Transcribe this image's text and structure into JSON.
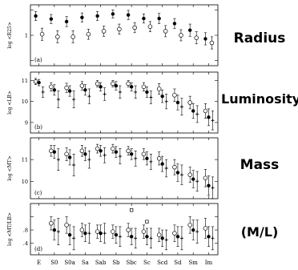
{
  "chart_data": [
    {
      "type": "scatter",
      "panel_tag": "(a)",
      "title": "Radius",
      "ylabel": "log <R25>",
      "ylim": [
        0.4,
        1.6
      ],
      "yticks": [
        0.5,
        1.0,
        1.5
      ],
      "ytick_labels": [
        "",
        "1",
        ""
      ],
      "categories": [
        "E",
        "S0",
        "S0a",
        "Sa",
        "Sab",
        "Sb",
        "Sbc",
        "Sc",
        "Scd",
        "Sd",
        "Sm",
        "Im"
      ],
      "series": [
        {
          "marker": "filled-circle",
          "x": [
            0,
            1,
            2,
            3,
            4,
            5,
            6,
            7,
            8,
            9,
            10,
            11
          ],
          "values": [
            1.38,
            1.32,
            1.27,
            1.35,
            1.38,
            1.42,
            1.4,
            1.33,
            1.33,
            1.23,
            1.1,
            0.93
          ],
          "err": [
            0.09,
            0.09,
            0.1,
            0.09,
            0.09,
            0.08,
            0.09,
            0.09,
            0.1,
            0.1,
            0.12,
            0.12
          ]
        },
        {
          "marker": "open-circle",
          "x": [
            0,
            1,
            2,
            3,
            4,
            5,
            6,
            7,
            8,
            9,
            10,
            11
          ],
          "values": [
            1.02,
            0.97,
            0.97,
            1.02,
            1.08,
            1.12,
            1.15,
            1.17,
            1.08,
            1.0,
            0.95,
            0.85
          ],
          "err": [
            0.12,
            0.12,
            0.12,
            0.1,
            0.1,
            0.1,
            0.1,
            0.1,
            0.11,
            0.11,
            0.12,
            0.12
          ]
        }
      ]
    },
    {
      "type": "scatter",
      "panel_tag": "(b)",
      "title": "Luminosity",
      "ylabel": "log <LB>",
      "ylim": [
        8.5,
        11.4
      ],
      "yticks": [
        9,
        10,
        11
      ],
      "ytick_labels": [
        "9",
        "10",
        "11"
      ],
      "categories": [
        "E",
        "S0",
        "S0a",
        "Sa",
        "Sab",
        "Sb",
        "Sbc",
        "Sc",
        "Scd",
        "Sd",
        "Sm",
        "Im"
      ],
      "series": [
        {
          "marker": "open-circle",
          "x": [
            0,
            1,
            2,
            3,
            4,
            5,
            6,
            7,
            8,
            9,
            10,
            11
          ],
          "values": [
            10.95,
            10.7,
            10.65,
            10.75,
            10.85,
            10.85,
            10.85,
            10.7,
            10.6,
            10.3,
            9.95,
            9.55
          ],
          "err": [
            0.15,
            0.2,
            0.22,
            0.2,
            0.15,
            0.15,
            0.15,
            0.2,
            0.25,
            0.3,
            0.3,
            0.35
          ]
        },
        {
          "marker": "filled-circle",
          "x": [
            0,
            1,
            2,
            3,
            4,
            5,
            6,
            7,
            8,
            9,
            10,
            11
          ],
          "values": [
            10.9,
            10.55,
            10.5,
            10.55,
            10.7,
            10.75,
            10.7,
            10.45,
            10.25,
            9.95,
            9.55,
            9.25
          ],
          "err": [
            0.15,
            0.25,
            0.25,
            0.25,
            0.2,
            0.2,
            0.2,
            0.25,
            0.3,
            0.35,
            0.35,
            0.4
          ]
        },
        {
          "marker": "cross",
          "x": [
            0,
            1,
            2,
            3,
            4,
            5,
            6,
            7,
            8,
            9,
            10,
            11
          ],
          "values": [
            10.45,
            10.1,
            10.1,
            10.25,
            10.35,
            10.45,
            10.45,
            10.2,
            10.0,
            9.75,
            9.4,
            9.1
          ],
          "err": [
            0.25,
            0.4,
            0.4,
            0.35,
            0.3,
            0.3,
            0.3,
            0.3,
            0.35,
            0.4,
            0.4,
            0.45
          ]
        }
      ]
    },
    {
      "type": "scatter",
      "panel_tag": "(c)",
      "title": "Mass",
      "ylabel": "log <MT>",
      "ylim": [
        9.2,
        12.0
      ],
      "yticks": [
        10,
        11
      ],
      "ytick_labels": [
        "10",
        "11"
      ],
      "categories": [
        "E",
        "S0",
        "S0a",
        "Sa",
        "Sab",
        "Sb",
        "Sbc",
        "Sc",
        "Scd",
        "Sd",
        "Sm",
        "Im"
      ],
      "series": [
        {
          "marker": "open-circle",
          "x": [
            1,
            2,
            3,
            4,
            5,
            6,
            7,
            8,
            9,
            10,
            11
          ],
          "values": [
            11.4,
            11.25,
            11.4,
            11.5,
            11.5,
            11.4,
            11.25,
            11.05,
            10.65,
            10.3,
            10.15
          ],
          "err": [
            0.25,
            0.3,
            0.25,
            0.2,
            0.2,
            0.2,
            0.25,
            0.3,
            0.35,
            0.35,
            0.4
          ]
        },
        {
          "marker": "filled-circle",
          "x": [
            1,
            2,
            3,
            4,
            5,
            6,
            7,
            8,
            9,
            10,
            11
          ],
          "values": [
            11.35,
            11.1,
            11.25,
            11.4,
            11.35,
            11.25,
            11.05,
            10.8,
            10.4,
            10.1,
            9.8
          ],
          "err": [
            0.3,
            0.35,
            0.3,
            0.25,
            0.25,
            0.25,
            0.3,
            0.35,
            0.4,
            0.4,
            0.45
          ]
        },
        {
          "marker": "cross",
          "x": [
            1,
            2,
            3,
            4,
            5,
            6,
            7,
            8,
            9,
            10,
            11
          ],
          "values": [
            11.0,
            10.75,
            11.0,
            11.2,
            11.15,
            11.05,
            10.9,
            10.6,
            10.3,
            10.0,
            9.7
          ],
          "err": [
            0.5,
            0.5,
            0.4,
            0.35,
            0.35,
            0.35,
            0.35,
            0.4,
            0.45,
            0.45,
            0.5
          ]
        }
      ]
    },
    {
      "type": "scatter",
      "panel_tag": "(d)",
      "title": "(M/L)",
      "ylabel": "log <MT/LB>",
      "ylim": [
        0.05,
        1.6
      ],
      "yticks": [
        0.4,
        0.8,
        1.2
      ],
      "ytick_labels": [
        ".4",
        ".8",
        ""
      ],
      "categories": [
        "E",
        "S0",
        "S0a",
        "Sa",
        "Sab",
        "Sb",
        "Sbc",
        "Sc",
        "Scd",
        "Sd",
        "Sm",
        "Im"
      ],
      "series": [
        {
          "marker": "open-circle",
          "x": [
            1,
            2,
            3,
            4,
            5,
            6,
            7,
            8,
            9,
            10,
            11
          ],
          "values": [
            1.0,
            0.95,
            0.8,
            0.75,
            0.75,
            0.8,
            0.75,
            0.65,
            0.7,
            0.95,
            0.85
          ],
          "err": [
            0.2,
            0.25,
            0.2,
            0.2,
            0.2,
            0.2,
            0.2,
            0.2,
            0.25,
            0.25,
            0.3
          ]
        },
        {
          "marker": "filled-circle",
          "x": [
            1,
            2,
            3,
            4,
            5,
            6,
            7,
            8,
            9,
            10,
            11
          ],
          "values": [
            0.8,
            0.65,
            0.7,
            0.7,
            0.65,
            0.6,
            0.6,
            0.55,
            0.6,
            0.8,
            0.6
          ],
          "err": [
            0.3,
            0.3,
            0.25,
            0.25,
            0.25,
            0.25,
            0.25,
            0.25,
            0.3,
            0.3,
            0.3
          ]
        },
        {
          "marker": "cross",
          "x": [
            1,
            2,
            3,
            4,
            5,
            6,
            7,
            8,
            9,
            10,
            11
          ],
          "values": [
            0.75,
            0.55,
            0.7,
            0.7,
            0.6,
            0.55,
            0.55,
            0.5,
            0.55,
            0.75,
            0.55
          ],
          "err": [
            0.4,
            0.35,
            0.3,
            0.3,
            0.3,
            0.3,
            0.3,
            0.3,
            0.35,
            0.35,
            0.35
          ]
        },
        {
          "marker": "open-square",
          "x": [
            6,
            7
          ],
          "values": [
            1.4,
            1.05
          ],
          "err": [
            0,
            0
          ]
        }
      ]
    }
  ]
}
